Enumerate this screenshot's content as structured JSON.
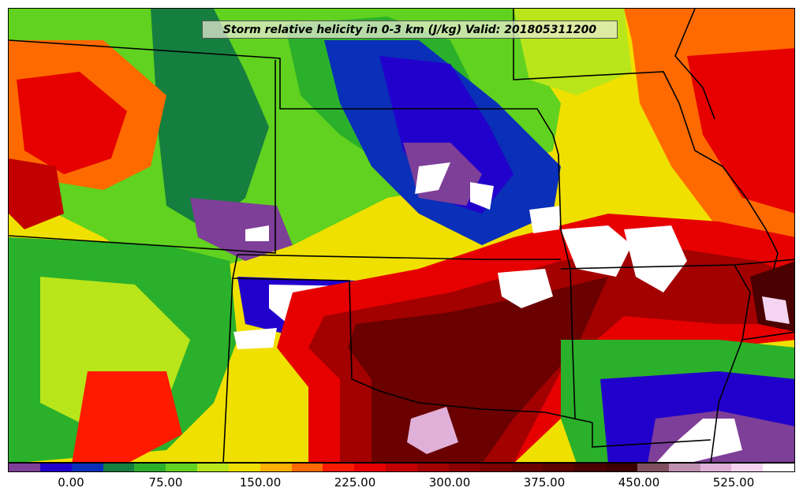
{
  "title": "Storm relative helicity in 0-3 km (J/kg) Valid: 201805311200",
  "colorbar": {
    "colors": [
      "#7e3f98",
      "#2200cc",
      "#0a2fb8",
      "#157f3f",
      "#2bb02b",
      "#60d21f",
      "#b8e61a",
      "#f0e000",
      "#ffb000",
      "#ff6a00",
      "#ff1a00",
      "#e60000",
      "#c20000",
      "#a30000",
      "#8a0000",
      "#7a0000",
      "#6a0000",
      "#5c0000",
      "#4a0000",
      "#3c0000",
      "#805060",
      "#c090b0",
      "#e0b0d8",
      "#f4d4f0",
      "#ffffff"
    ],
    "tick_labels": [
      "0.00",
      "75.00",
      "150.00",
      "225.00",
      "300.00",
      "375.00",
      "450.00",
      "525.00"
    ]
  }
}
